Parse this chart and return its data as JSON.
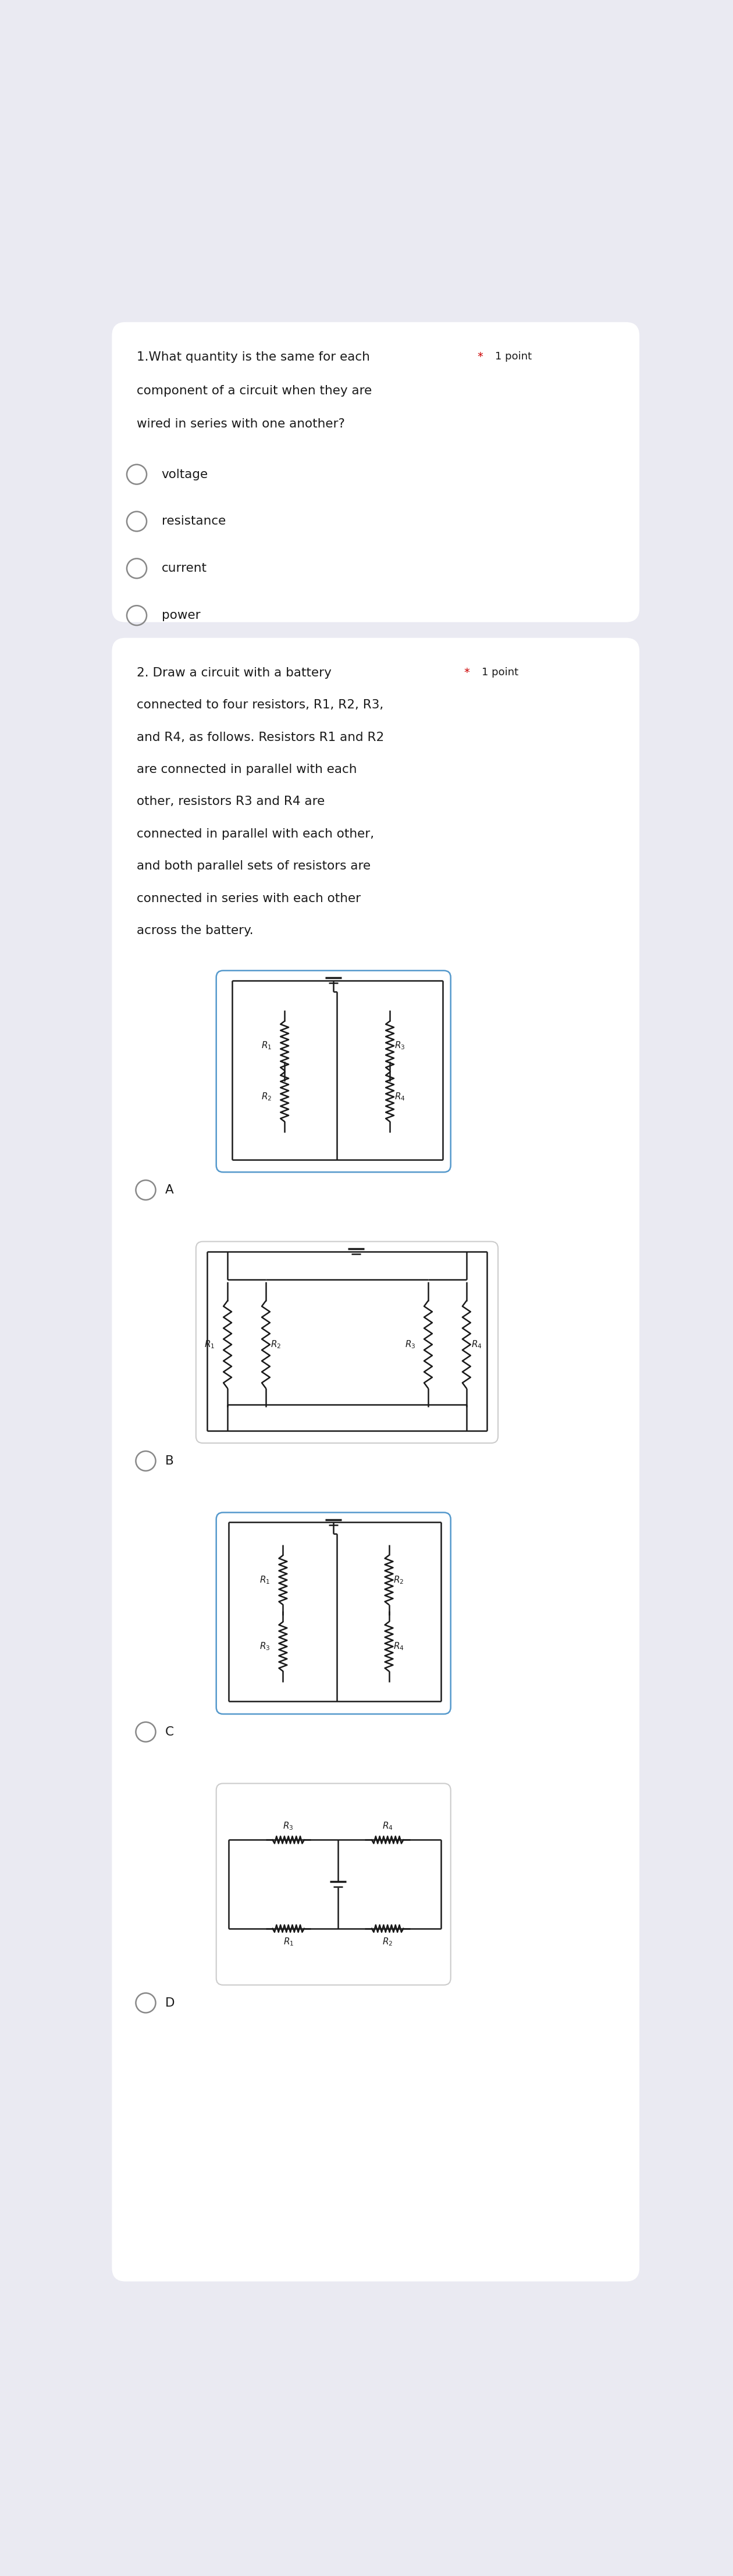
{
  "bg_color": "#eaeaf2",
  "card_color": "#ffffff",
  "text_color": "#1a1a1a",
  "star_color": "#cc0000",
  "q1_line1": "1.What quantity is the same for each",
  "q1_line2": "component of a circuit when they are",
  "q1_line3": "wired in series with one another?",
  "q1_point": "* 1 point",
  "q1_options": [
    "voltage",
    "resistance",
    "current",
    "power"
  ],
  "q2_line1": "2. Draw a circuit with a battery",
  "q2_line2": "connected to four resistors, R1, R2, R3,",
  "q2_line3": "and R4, as follows. Resistors R1 and R2",
  "q2_line4": "are connected in parallel with each",
  "q2_line5": "other, resistors R3 and R4 are",
  "q2_line6": "connected in parallel with each other,",
  "q2_line7": "and both parallel sets of resistors are",
  "q2_line8": "connected in series with each other",
  "q2_line9": "across the battery.",
  "q2_point": "* 1 point",
  "answer_labels": [
    "A",
    "B",
    "C",
    "D"
  ],
  "circuit_border_A": "#5599cc",
  "circuit_border_BCD": "#cccccc",
  "line_color": "#1a1a1a"
}
